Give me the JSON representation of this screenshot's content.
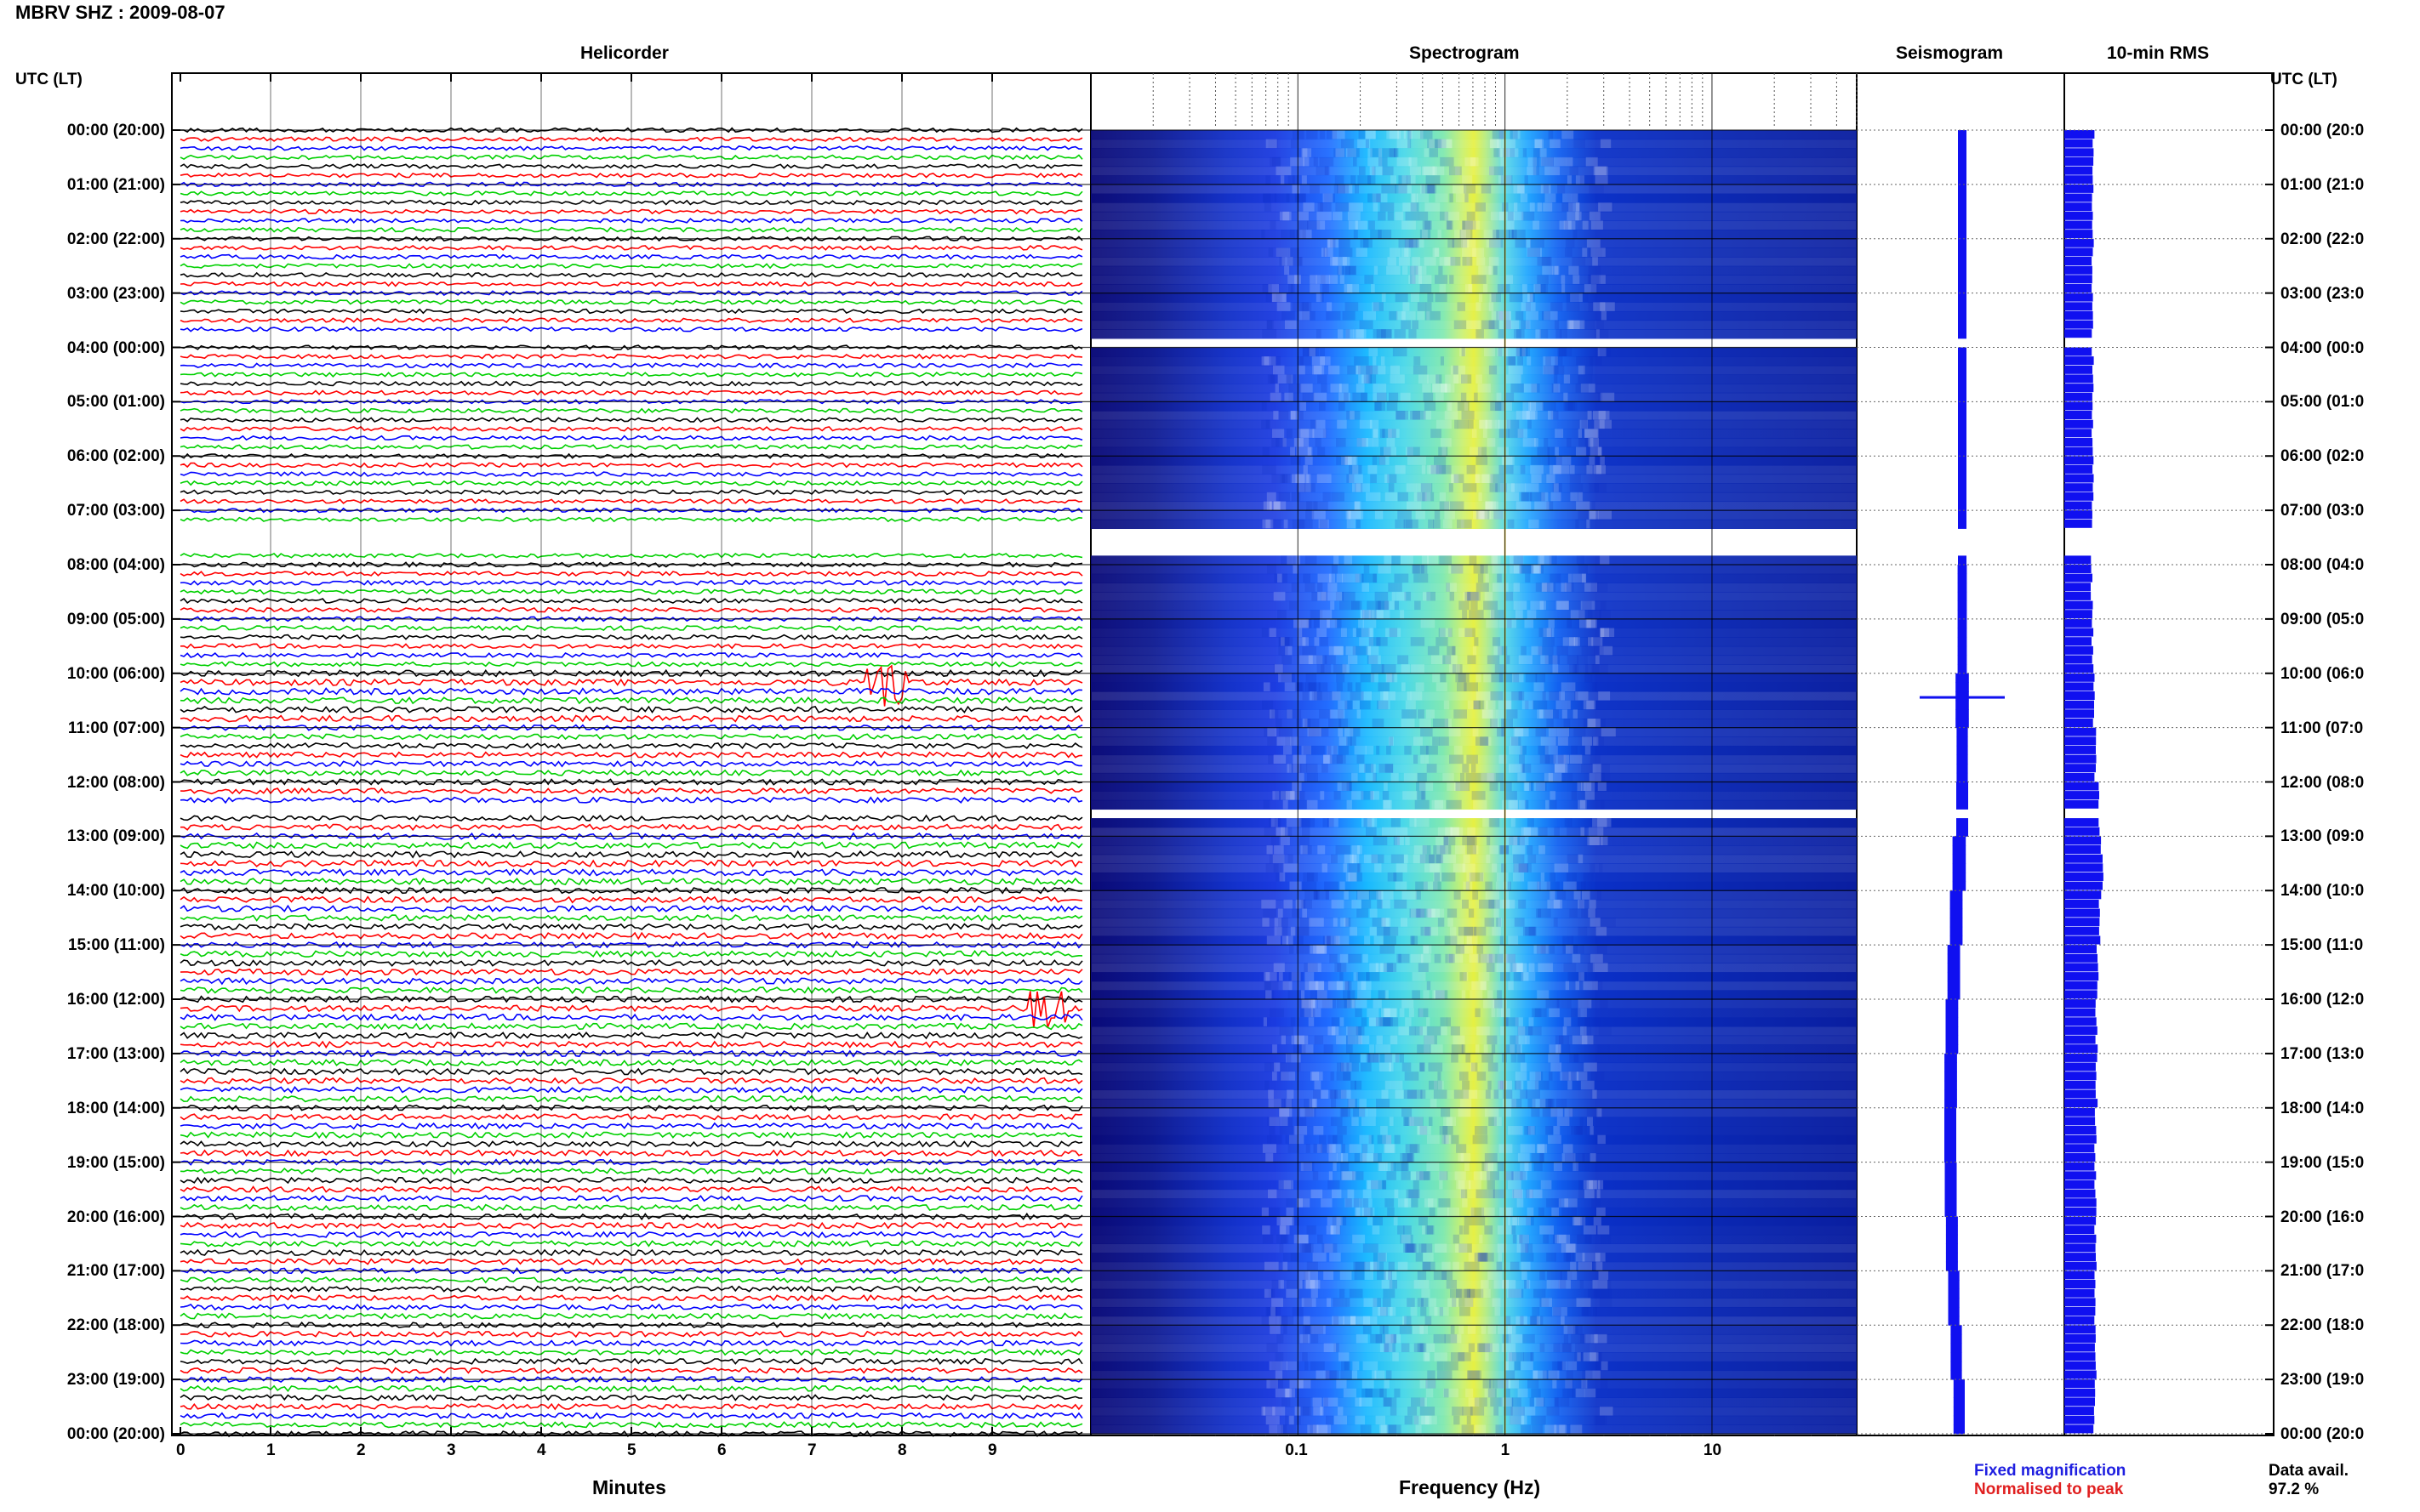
{
  "header": {
    "station_title": "MBRV SHZ : 2009-08-07",
    "time_axis_label_left": "UTC (LT)",
    "time_axis_label_right": "UTC (LT)"
  },
  "panels": {
    "helicorder": "Helicorder",
    "spectrogram": "Spectrogram",
    "seismogram": "Seismogram",
    "rms": "10-min RMS"
  },
  "footer": {
    "x_label_minutes": "Minutes",
    "x_label_frequency": "Frequency (Hz)",
    "legend_fixed": "Fixed magnification",
    "legend_normalised": "Normalised to peak",
    "data_avail_label": "Data avail.",
    "data_avail_value": "97.2 %"
  },
  "colors": {
    "trace_cycle": [
      "#000000",
      "#ff0000",
      "#0000ff",
      "#00d000"
    ],
    "fixed_blue": "#1f1fe0",
    "normalised_red": "#e01f1f",
    "spectrogram_low": "#00009a",
    "spectrogram_high": "#ffff30"
  },
  "chart_data": [
    {
      "type": "line",
      "name": "helicorder",
      "x_label": "Minutes",
      "x_ticks": [
        "0",
        "1",
        "2",
        "3",
        "4",
        "5",
        "6",
        "7",
        "8",
        "9"
      ],
      "xlim": [
        0,
        10
      ],
      "lines_per_hour": 6,
      "hours": 24,
      "y_tick_labels_left": [
        "00:00 (20:00)",
        "01:00 (21:00)",
        "02:00 (22:00)",
        "03:00 (23:00)",
        "04:00 (00:00)",
        "05:00 (01:00)",
        "06:00 (02:00)",
        "07:00 (03:00)",
        "08:00 (04:00)",
        "09:00 (05:00)",
        "10:00 (06:00)",
        "11:00 (07:00)",
        "12:00 (08:00)",
        "13:00 (09:00)",
        "14:00 (10:00)",
        "15:00 (11:00)",
        "16:00 (12:00)",
        "17:00 (13:00)",
        "18:00 (14:00)",
        "19:00 (15:00)",
        "20:00 (16:00)",
        "21:00 (17:00)",
        "22:00 (18:00)",
        "23:00 (19:00)",
        "00:00 (20:00)"
      ],
      "y_tick_labels_right": [
        "00:00 (20:0",
        "01:00 (21:0",
        "02:00 (22:0",
        "03:00 (23:0",
        "04:00 (00:0",
        "05:00 (01:0",
        "06:00 (02:0",
        "07:00 (03:0",
        "08:00 (04:0",
        "09:00 (05:0",
        "10:00 (06:0",
        "11:00 (07:0",
        "12:00 (08:0",
        "13:00 (09:0",
        "14:00 (10:0",
        "15:00 (11:0",
        "16:00 (12:0",
        "17:00 (13:0",
        "18:00 (14:0",
        "19:00 (15:0",
        "20:00 (16:0",
        "21:00 (17:0",
        "22:00 (18:0",
        "23:00 (19:0",
        "00:00 (20:0"
      ],
      "events": [
        {
          "hour": 10,
          "minute": 7.8,
          "amplitude": 3.0
        },
        {
          "hour": 16,
          "minute": 9.6,
          "amplitude": 2.5
        }
      ],
      "data_gaps_hours": [
        [
          3.67,
          4.0
        ],
        [
          7.33,
          7.67
        ],
        [
          12.5,
          12.52
        ]
      ]
    },
    {
      "type": "heatmap",
      "name": "spectrogram",
      "x_label": "Frequency (Hz)",
      "x_scale": "log",
      "xlim": [
        0.01,
        50
      ],
      "x_ticks": [
        "0.1",
        "1",
        "10"
      ],
      "peak_frequency_hz": 1.0,
      "energy_band_hz": [
        0.2,
        5
      ]
    },
    {
      "type": "line",
      "name": "seismogram",
      "description_series": "fixed magnification amplitude envelope per hour",
      "envelope_by_hour": [
        0.5,
        0.5,
        0.5,
        0.5,
        0.5,
        0.5,
        0.5,
        0.5,
        0.6,
        0.6,
        1.2,
        0.9,
        1.0,
        1.2,
        1.1,
        1.1,
        1.1,
        1.1,
        1.0,
        1.0,
        1.0,
        0.9,
        0.9,
        0.9
      ]
    },
    {
      "type": "bar",
      "name": "10-min RMS",
      "orientation": "horizontal",
      "rms_by_hour": [
        0.62,
        0.6,
        0.6,
        0.6,
        0.6,
        0.6,
        0.6,
        0.58,
        0.58,
        0.6,
        0.62,
        0.65,
        0.72,
        0.8,
        0.75,
        0.7,
        0.68,
        0.68,
        0.66,
        0.66,
        0.66,
        0.65,
        0.66,
        0.64
      ]
    }
  ]
}
